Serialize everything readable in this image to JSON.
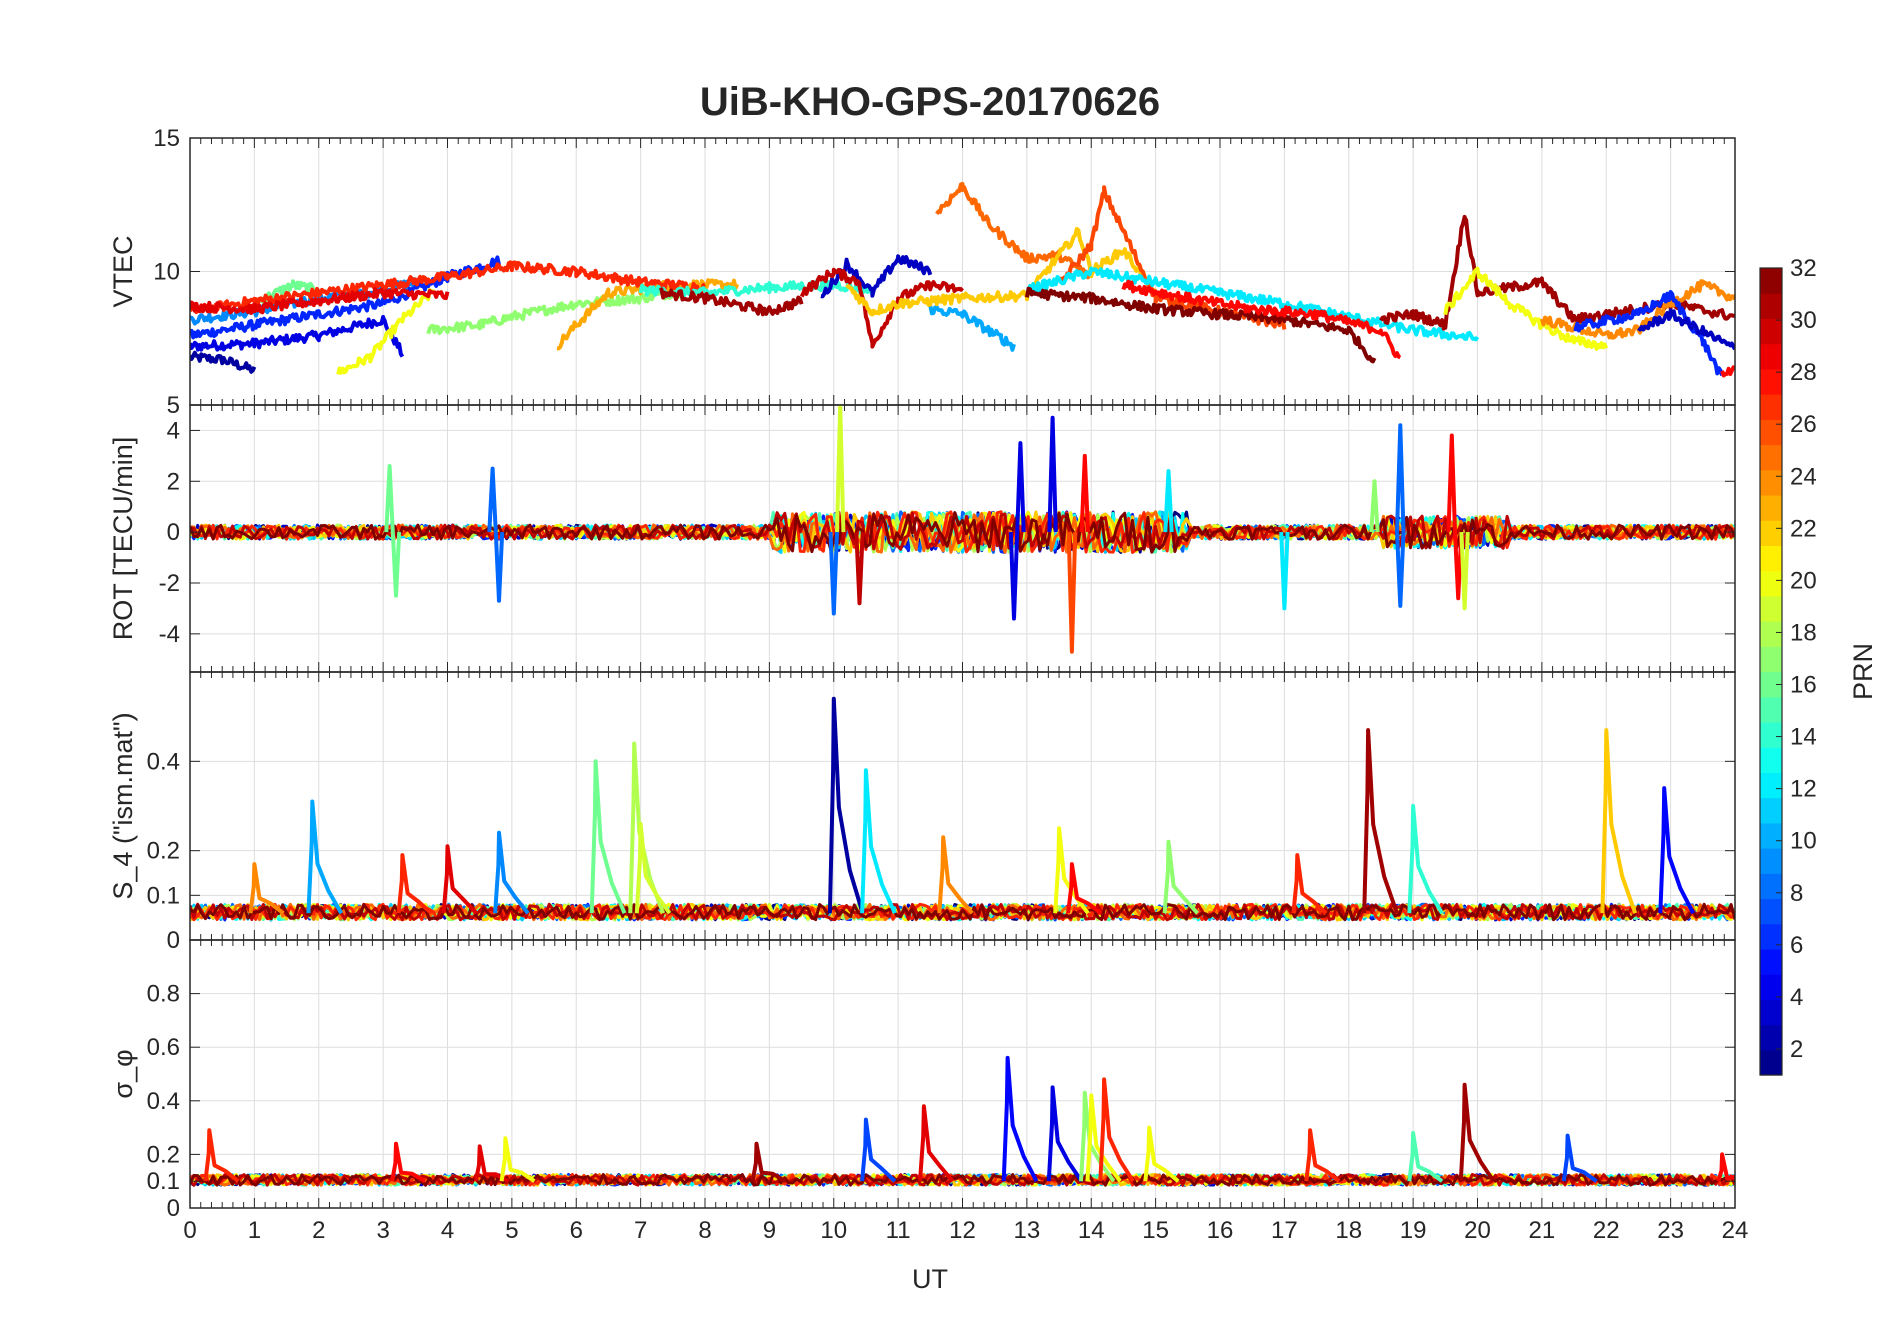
{
  "title": "UiB-KHO-GPS-20170626",
  "xlabel": "UT",
  "x_ticks": [
    "0",
    "1",
    "2",
    "3",
    "4",
    "5",
    "6",
    "7",
    "8",
    "9",
    "10",
    "11",
    "12",
    "13",
    "14",
    "15",
    "16",
    "17",
    "18",
    "19",
    "20",
    "21",
    "22",
    "23",
    "24"
  ],
  "colorbar": {
    "label": "PRN",
    "ticks": [
      "2",
      "4",
      "6",
      "8",
      "10",
      "12",
      "14",
      "16",
      "18",
      "20",
      "22",
      "24",
      "26",
      "28",
      "30",
      "32"
    ],
    "colormap": "jet",
    "range": [
      1,
      32
    ]
  },
  "chart_data": [
    {
      "type": "line",
      "panel": "vtec",
      "ylabel": "VTEC",
      "xlim": [
        0,
        24
      ],
      "ylim": [
        5,
        15
      ],
      "y_ticks": [
        5,
        10,
        15
      ],
      "y_tick_labels": [
        "5",
        "10",
        "15"
      ],
      "grid": true,
      "series": [
        {
          "prn": 2,
          "points": [
            [
              0,
              6.8
            ],
            [
              0.5,
              6.7
            ],
            [
              1,
              6.3
            ]
          ]
        },
        {
          "prn": 4,
          "points": [
            [
              0,
              7.2
            ],
            [
              1,
              7.3
            ],
            [
              2,
              7.6
            ],
            [
              3,
              8.2
            ],
            [
              3.3,
              6.9
            ]
          ]
        },
        {
          "prn": 6,
          "points": [
            [
              0,
              7.6
            ],
            [
              1,
              8.0
            ],
            [
              2,
              8.4
            ],
            [
              3,
              8.8
            ],
            [
              4,
              9.8
            ],
            [
              4.8,
              10.4
            ]
          ]
        },
        {
          "prn": 9,
          "points": [
            [
              0,
              8.2
            ],
            [
              1,
              8.5
            ],
            [
              2,
              9.0
            ],
            [
              3,
              9.3
            ],
            [
              3.5,
              9.6
            ]
          ]
        },
        {
          "prn": 16,
          "points": [
            [
              1,
              8.8
            ],
            [
              1.6,
              9.5
            ],
            [
              2,
              9.3
            ]
          ]
        },
        {
          "prn": 20,
          "points": [
            [
              2.3,
              6.2
            ],
            [
              2.8,
              6.8
            ],
            [
              3.3,
              8.2
            ],
            [
              3.8,
              9.3
            ]
          ]
        },
        {
          "prn": 17,
          "points": [
            [
              3.7,
              7.8
            ],
            [
              4.5,
              8.0
            ],
            [
              5,
              8.3
            ],
            [
              6,
              8.8
            ],
            [
              7,
              9.0
            ],
            [
              8,
              9.4
            ]
          ]
        },
        {
          "prn": 23,
          "points": [
            [
              5.7,
              7.2
            ],
            [
              6.0,
              8.0
            ],
            [
              6.5,
              9.2
            ],
            [
              7.5,
              9.5
            ],
            [
              8.5,
              9.5
            ]
          ]
        },
        {
          "prn": 27,
          "points": [
            [
              0,
              8.5
            ],
            [
              1,
              8.9
            ],
            [
              2,
              9.2
            ],
            [
              3,
              9.5
            ],
            [
              4,
              9.8
            ],
            [
              5,
              10.2
            ],
            [
              6,
              10.0
            ],
            [
              7,
              9.6
            ],
            [
              8,
              9.4
            ]
          ]
        },
        {
          "prn": 29,
          "points": [
            [
              0,
              8.7
            ],
            [
              1,
              8.6
            ],
            [
              2,
              8.9
            ],
            [
              3,
              9.2
            ],
            [
              4,
              9.1
            ]
          ]
        },
        {
          "prn": 14,
          "points": [
            [
              7,
              9.3
            ],
            [
              8,
              9.2
            ],
            [
              9,
              9.4
            ],
            [
              10,
              9.5
            ],
            [
              10.6,
              9.3
            ]
          ]
        },
        {
          "prn": 31,
          "points": [
            [
              7.3,
              9.2
            ],
            [
              8,
              9.0
            ],
            [
              9,
              8.5
            ],
            [
              9.5,
              8.9
            ]
          ]
        },
        {
          "prn": 3,
          "points": [
            [
              9.8,
              9.0
            ],
            [
              10.2,
              10.3
            ],
            [
              10.6,
              9.2
            ],
            [
              11,
              10.5
            ],
            [
              11.5,
              10.0
            ]
          ]
        },
        {
          "prn": 30,
          "points": [
            [
              9.5,
              9.2
            ],
            [
              10,
              10.0
            ],
            [
              10.4,
              9.6
            ],
            [
              10.6,
              7.2
            ],
            [
              11,
              9.0
            ],
            [
              11.5,
              9.5
            ],
            [
              12,
              9.3
            ]
          ]
        },
        {
          "prn": 10,
          "points": [
            [
              11.5,
              8.6
            ],
            [
              12,
              8.4
            ],
            [
              12.6,
              7.5
            ],
            [
              12.8,
              7.2
            ]
          ]
        },
        {
          "prn": 25,
          "points": [
            [
              11.6,
              12.2
            ],
            [
              12,
              13.2
            ],
            [
              12.4,
              11.8
            ],
            [
              13,
              10.5
            ],
            [
              13.5,
              10.6
            ],
            [
              14,
              9.8
            ]
          ]
        },
        {
          "prn": 22,
          "points": [
            [
              10.2,
              9.5
            ],
            [
              10.6,
              8.5
            ],
            [
              11,
              8.8
            ],
            [
              12,
              9.0
            ],
            [
              13,
              9.1
            ],
            [
              13.8,
              11.5
            ],
            [
              14,
              10.0
            ],
            [
              14.5,
              10.8
            ],
            [
              15,
              9.2
            ]
          ]
        },
        {
          "prn": 26,
          "points": [
            [
              13.5,
              9.5
            ],
            [
              14,
              11.0
            ],
            [
              14.2,
              13.0
            ],
            [
              14.5,
              11.5
            ],
            [
              15,
              9.0
            ],
            [
              16,
              8.5
            ],
            [
              17,
              8.0
            ]
          ]
        },
        {
          "prn": 12,
          "points": [
            [
              13,
              9.3
            ],
            [
              14,
              10.0
            ],
            [
              15,
              9.6
            ],
            [
              16,
              9.2
            ],
            [
              17,
              8.8
            ],
            [
              18,
              8.3
            ],
            [
              19,
              7.8
            ],
            [
              20,
              7.5
            ]
          ]
        },
        {
          "prn": 32,
          "points": [
            [
              13,
              9.2
            ],
            [
              14,
              9.0
            ],
            [
              15,
              8.6
            ],
            [
              16,
              8.4
            ],
            [
              17,
              8.2
            ],
            [
              18,
              7.8
            ],
            [
              18.4,
              6.6
            ]
          ]
        },
        {
          "prn": 28,
          "points": [
            [
              14.5,
              9.5
            ],
            [
              15.5,
              9.0
            ],
            [
              16.5,
              8.6
            ],
            [
              17.5,
              8.4
            ],
            [
              18.5,
              7.8
            ],
            [
              18.8,
              6.7
            ]
          ]
        },
        {
          "prn": 31,
          "points": [
            [
              18.5,
              8.2
            ],
            [
              19,
              8.4
            ],
            [
              19.5,
              8.0
            ],
            [
              19.8,
              12.2
            ],
            [
              20,
              9.2
            ],
            [
              21,
              9.6
            ],
            [
              21.5,
              8.2
            ],
            [
              22,
              8.4
            ],
            [
              23,
              8.8
            ],
            [
              24,
              8.3
            ]
          ]
        },
        {
          "prn": 20,
          "points": [
            [
              19.5,
              8.5
            ],
            [
              20,
              10.0
            ],
            [
              20.5,
              8.8
            ],
            [
              21,
              8.0
            ],
            [
              21.5,
              7.4
            ],
            [
              22,
              7.2
            ]
          ]
        },
        {
          "prn": 24,
          "points": [
            [
              21,
              8.2
            ],
            [
              22,
              7.6
            ],
            [
              22.5,
              7.8
            ],
            [
              23,
              8.8
            ],
            [
              23.5,
              9.5
            ],
            [
              24,
              9.0
            ]
          ]
        },
        {
          "prn": 6,
          "points": [
            [
              21.5,
              7.9
            ],
            [
              22.5,
              8.4
            ],
            [
              23,
              9.1
            ],
            [
              23.5,
              7.4
            ],
            [
              23.8,
              6.0
            ]
          ]
        },
        {
          "prn": 3,
          "points": [
            [
              22.5,
              7.8
            ],
            [
              23,
              8.4
            ],
            [
              24,
              7.1
            ]
          ]
        },
        {
          "prn": 28,
          "points": [
            [
              23.8,
              6.2
            ],
            [
              24,
              6.4
            ]
          ]
        }
      ]
    },
    {
      "type": "line",
      "panel": "rot",
      "ylabel": "ROT [TECU/min]",
      "xlim": [
        0,
        24
      ],
      "ylim": [
        -5.5,
        5
      ],
      "y_ticks": [
        -4,
        -2,
        0,
        2,
        4
      ],
      "y_tick_labels": [
        "-4",
        "-2",
        "0",
        "2",
        "4"
      ],
      "grid": true,
      "description": "Noisy series around 0 for all PRNs; notable excursions listed as spikes [x, y, prn]",
      "spikes": [
        [
          3.1,
          2.6,
          16
        ],
        [
          3.2,
          -2.5,
          16
        ],
        [
          4.7,
          2.5,
          8
        ],
        [
          4.8,
          -2.7,
          8
        ],
        [
          10.1,
          5.0,
          19
        ],
        [
          10.0,
          -3.2,
          8
        ],
        [
          10.4,
          -2.8,
          30
        ],
        [
          12.9,
          3.5,
          4
        ],
        [
          12.8,
          -3.4,
          4
        ],
        [
          13.4,
          4.5,
          4
        ],
        [
          13.7,
          -4.7,
          26
        ],
        [
          13.9,
          3.0,
          28
        ],
        [
          15.2,
          2.4,
          12
        ],
        [
          17.0,
          -3.0,
          12
        ],
        [
          18.8,
          4.2,
          8
        ],
        [
          18.8,
          -2.9,
          8
        ],
        [
          19.6,
          3.8,
          28
        ],
        [
          19.7,
          -2.6,
          28
        ],
        [
          19.8,
          -3.0,
          19
        ],
        [
          18.4,
          2.0,
          17
        ]
      ]
    },
    {
      "type": "line",
      "panel": "s4",
      "ylabel": "S_4 (\"ism.mat\")",
      "xlim": [
        0,
        24
      ],
      "ylim": [
        0,
        0.6
      ],
      "y_ticks": [
        0,
        0.1,
        0.2,
        0.4
      ],
      "y_tick_labels": [
        "0",
        "0.1",
        "0.2",
        "0.4"
      ],
      "grid": true,
      "description": "Baseline ~0.05 for all PRNs; peaks listed as [x, y, prn]",
      "peaks": [
        [
          1.0,
          0.17,
          24
        ],
        [
          1.9,
          0.31,
          10
        ],
        [
          3.3,
          0.19,
          27
        ],
        [
          4.0,
          0.21,
          29
        ],
        [
          4.8,
          0.24,
          9
        ],
        [
          6.3,
          0.4,
          16
        ],
        [
          6.9,
          0.44,
          18
        ],
        [
          7.0,
          0.26,
          19
        ],
        [
          10.0,
          0.54,
          2
        ],
        [
          10.5,
          0.38,
          12
        ],
        [
          11.7,
          0.23,
          24
        ],
        [
          13.5,
          0.25,
          20
        ],
        [
          13.7,
          0.17,
          28
        ],
        [
          15.2,
          0.22,
          17
        ],
        [
          17.2,
          0.19,
          27
        ],
        [
          18.3,
          0.47,
          31
        ],
        [
          19.0,
          0.3,
          14
        ],
        [
          22.0,
          0.47,
          22
        ],
        [
          22.9,
          0.34,
          5
        ]
      ]
    },
    {
      "type": "line",
      "panel": "sigma_phi",
      "ylabel": "σ_φ",
      "xlim": [
        0,
        24
      ],
      "ylim": [
        0,
        1
      ],
      "y_ticks": [
        0,
        0.1,
        0.2,
        0.4,
        0.6,
        0.8
      ],
      "y_tick_labels": [
        "0",
        "0.1",
        "0.2",
        "0.4",
        "0.6",
        "0.8"
      ],
      "grid": true,
      "description": "Baseline ~0.1 for all PRNs; peaks listed as [x, y, prn]",
      "peaks": [
        [
          0.3,
          0.29,
          27
        ],
        [
          3.2,
          0.24,
          28
        ],
        [
          4.5,
          0.23,
          29
        ],
        [
          4.9,
          0.26,
          20
        ],
        [
          8.8,
          0.24,
          31
        ],
        [
          10.5,
          0.33,
          7
        ],
        [
          11.4,
          0.38,
          29
        ],
        [
          12.7,
          0.56,
          5
        ],
        [
          13.4,
          0.45,
          4
        ],
        [
          13.9,
          0.43,
          17
        ],
        [
          14.0,
          0.42,
          20
        ],
        [
          14.2,
          0.48,
          27
        ],
        [
          14.9,
          0.3,
          20
        ],
        [
          17.4,
          0.29,
          27
        ],
        [
          19.0,
          0.28,
          15
        ],
        [
          19.8,
          0.46,
          31
        ],
        [
          21.4,
          0.27,
          7
        ],
        [
          23.8,
          0.2,
          28
        ]
      ]
    }
  ]
}
